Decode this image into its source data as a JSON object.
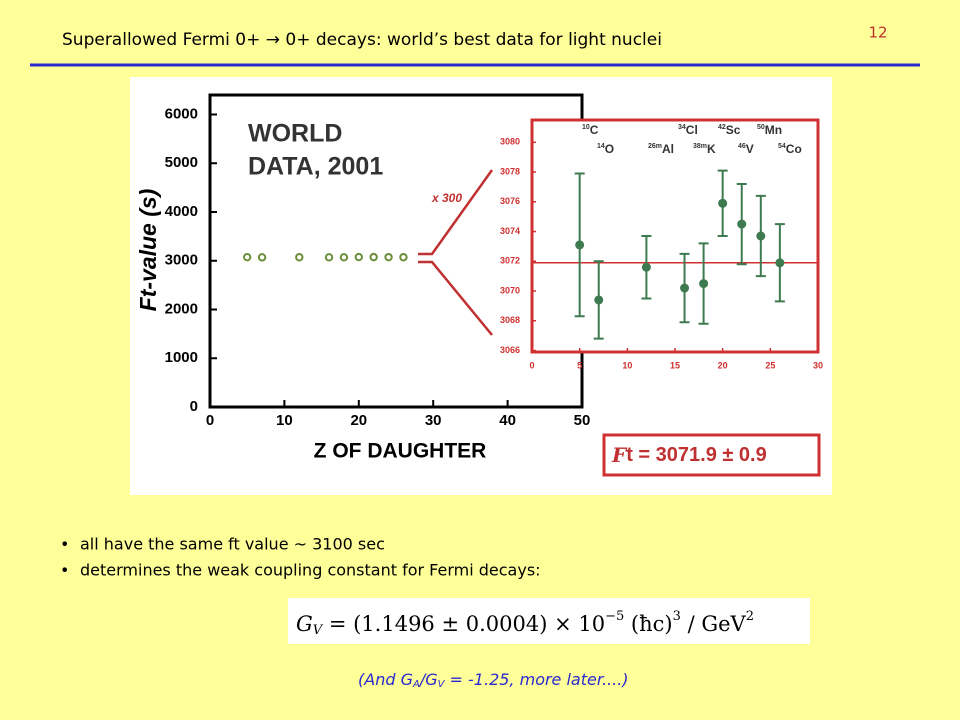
{
  "header": {
    "title": "Superallowed Fermi 0+ → 0+ decays:  world’s best data for light nuclei",
    "page_number": "12"
  },
  "chart_data": [
    {
      "type": "scatter",
      "x_label": "Z OF DAUGHTER",
      "y_label": "Ft-value (s)",
      "annotations": [
        "WORLD",
        "DATA, 2001",
        "x 300"
      ],
      "x": [
        5,
        7,
        12,
        16,
        18,
        20,
        22,
        24,
        26
      ],
      "series": [
        {
          "color": "#6b8e3a",
          "values": [
            3073.1,
            3069.4,
            3071.6,
            3070.2,
            3070.5,
            3075.9,
            3074.5,
            3073.7,
            3071.9
          ]
        }
      ],
      "xlim": [
        0,
        50
      ],
      "ylim": [
        0,
        6400
      ],
      "xticks": [
        0,
        10,
        20,
        30,
        40,
        50
      ],
      "yticks": [
        0,
        1000,
        2000,
        3000,
        4000,
        5000,
        6000
      ]
    },
    {
      "type": "errorbar",
      "x": [
        5,
        7,
        12,
        16,
        18,
        20,
        22,
        24,
        26
      ],
      "series": [
        {
          "color": "#3e7a50",
          "values": [
            3073.1,
            3069.4,
            3071.6,
            3070.2,
            3070.5,
            3075.9,
            3074.5,
            3073.7,
            3071.9
          ],
          "errors": [
            4.8,
            2.6,
            2.1,
            2.3,
            2.7,
            2.2,
            2.7,
            2.7,
            2.6
          ]
        }
      ],
      "ref_line": 3071.9,
      "frame_color": "#d03030",
      "nuclides": [
        {
          "mass": "10",
          "symbol": "C"
        },
        {
          "mass": "14",
          "symbol": "O"
        },
        {
          "mass": "26m",
          "symbol": "Al"
        },
        {
          "mass": "34",
          "symbol": "Cl"
        },
        {
          "mass": "38m",
          "symbol": "K"
        },
        {
          "mass": "42",
          "symbol": "Sc"
        },
        {
          "mass": "46",
          "symbol": "V"
        },
        {
          "mass": "50",
          "symbol": "Mn"
        },
        {
          "mass": "54",
          "symbol": "Co"
        }
      ],
      "xlim": [
        0,
        30
      ],
      "ylim": [
        3065.9,
        3081.5
      ],
      "xticks": [
        0,
        5,
        10,
        15,
        20,
        25,
        30
      ],
      "yticks": [
        3066,
        3068,
        3070,
        3072,
        3074,
        3076,
        3078,
        3080
      ]
    }
  ],
  "result": {
    "symbol": "F",
    "text": "t = 3071.9 ± 0.9"
  },
  "bullets": [
    "all have the same ft  value ~  3100 sec",
    "determines the weak coupling constant for Fermi decays:"
  ],
  "equation": {
    "lhs": "G",
    "lhs_sub": "V",
    "body": " = (1.1496 ± 0.0004) × 10",
    "exp": "−5",
    "factor": " (ħc)",
    "factor_exp": "3",
    "unit": " / GeV",
    "unit_exp": "2"
  },
  "ratio_note": {
    "a": "(And G",
    "a_sub": "A",
    "b": "/G",
    "b_sub": "V",
    "c": " = -1.25,   more later....)"
  }
}
